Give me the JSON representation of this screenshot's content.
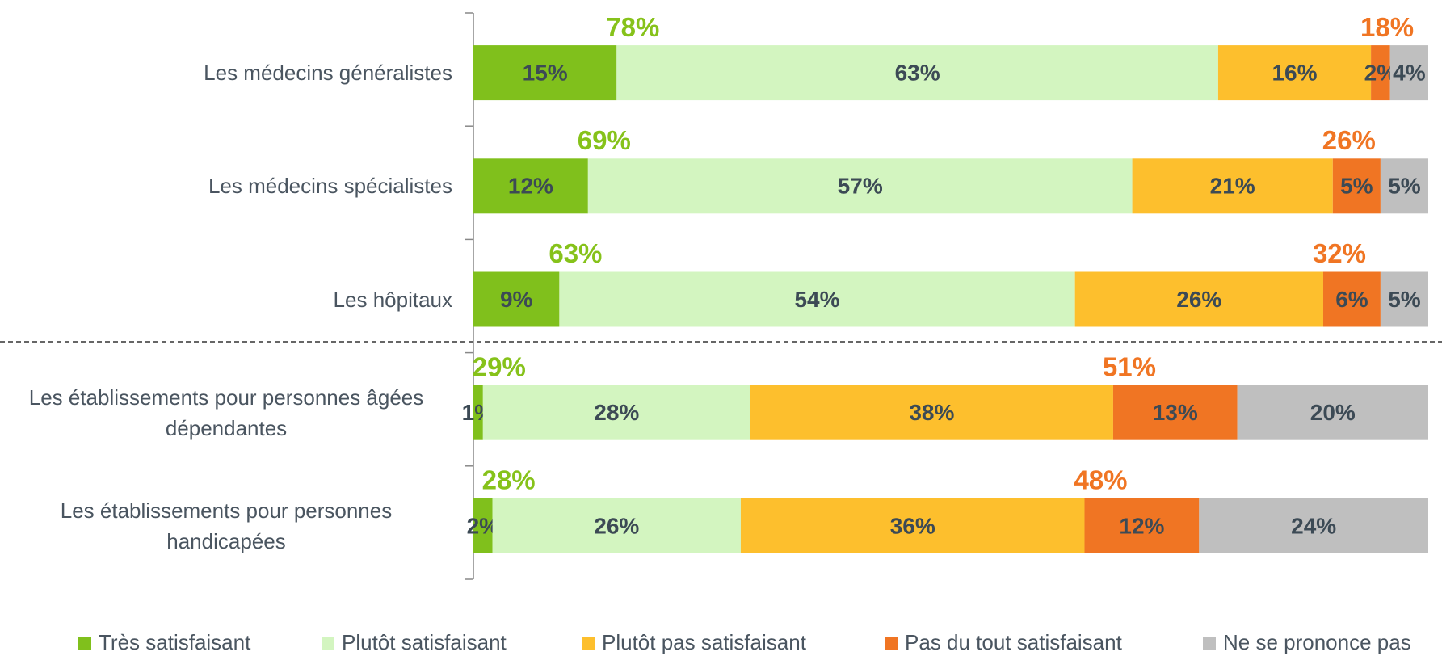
{
  "chart_data": {
    "type": "bar",
    "orientation": "horizontal",
    "stacked": true,
    "categories": [
      "Les médecins généralistes",
      "Les médecins spécialistes",
      "Les hôpitaux",
      "Les établissements pour personnes âgées dépendantes",
      "Les établissements pour personnes handicapées"
    ],
    "xlim": [
      0,
      100
    ],
    "series": [
      {
        "name": "Très satisfaisant",
        "color": "#80c01c",
        "values": [
          15,
          12,
          9,
          1,
          2
        ],
        "value_labels": [
          "15%",
          "12%",
          "9%",
          "1%",
          "2%"
        ]
      },
      {
        "name": "Plutôt satisfaisant",
        "color": "#d3f5c0",
        "values": [
          63,
          57,
          54,
          28,
          26
        ],
        "value_labels": [
          "63%",
          "57%",
          "54%",
          "28%",
          "26%"
        ]
      },
      {
        "name": "Plutôt pas satisfaisant",
        "color": "#fdbf2d",
        "values": [
          16,
          21,
          26,
          38,
          36
        ],
        "value_labels": [
          "16%",
          "21%",
          "26%",
          "38%",
          "36%"
        ]
      },
      {
        "name": "Pas du tout satisfaisant",
        "color": "#f07523",
        "values": [
          2,
          5,
          6,
          13,
          12
        ],
        "value_labels": [
          "2%",
          "5%",
          "6%",
          "13%",
          "12%"
        ]
      },
      {
        "name": "Ne se prononce pas",
        "color": "#bfbfbf",
        "values": [
          4,
          5,
          5,
          20,
          24
        ],
        "value_labels": [
          "4%",
          "5%",
          "5%",
          "20%",
          "24%"
        ]
      }
    ],
    "annotations": {
      "satisfied": {
        "color": "#86c21a",
        "values": [
          78,
          69,
          63,
          29,
          28
        ],
        "value_labels": [
          "78%",
          "69%",
          "63%",
          "29%",
          "28%"
        ]
      },
      "unsatisfied": {
        "color": "#f07523",
        "values": [
          18,
          26,
          32,
          51,
          48
        ],
        "value_labels": [
          "18%",
          "26%",
          "32%",
          "51%",
          "48%"
        ]
      }
    }
  }
}
